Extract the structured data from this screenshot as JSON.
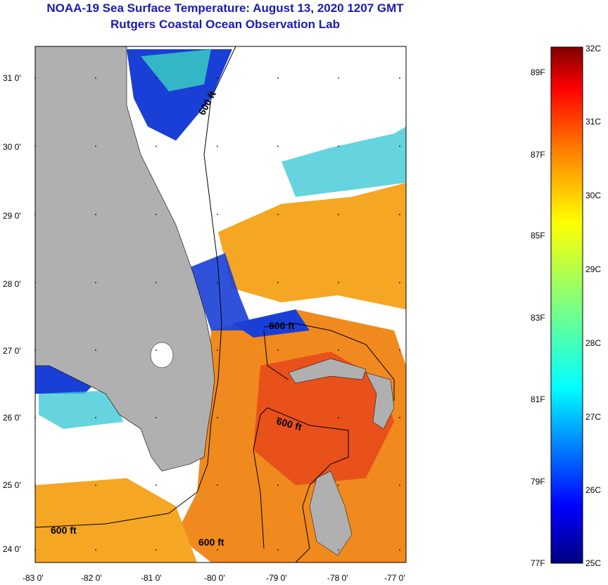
{
  "title": "NOAA-19 Sea Surface Temperature:  August 13, 2020 1207 GMT",
  "subtitle": "Rutgers Coastal Ocean Observation Lab",
  "map": {
    "lat_labels": [
      "31 0'",
      "30 0'",
      "29 0'",
      "28 0'",
      "27 0'",
      "26 0'",
      "25 0'",
      "24 0'"
    ],
    "lon_labels": [
      "-83 0'",
      "-82 0'",
      "-81 0'",
      "-80 0'",
      "-79 0'",
      "-78 0'",
      "-77 0'"
    ],
    "contour_labels": [
      "600 ft",
      "600 ft",
      "600 ft",
      "600 ft",
      "600 ft"
    ],
    "land_color": "#b0b0b0",
    "cloud_color": "#ffffff"
  },
  "colorbar": {
    "celsius_labels": [
      "32C",
      "31C",
      "30C",
      "29C",
      "28C",
      "27C",
      "26C",
      "25C"
    ],
    "fahrenheit_labels": [
      "89F",
      "87F",
      "85F",
      "83F",
      "81F",
      "79F",
      "77F"
    ],
    "min_c": 25,
    "max_c": 32,
    "colors": [
      "#00007f",
      "#0000ff",
      "#007fff",
      "#00ffff",
      "#7fff7f",
      "#ffff00",
      "#ff7f00",
      "#ff0000",
      "#7f0000"
    ]
  }
}
